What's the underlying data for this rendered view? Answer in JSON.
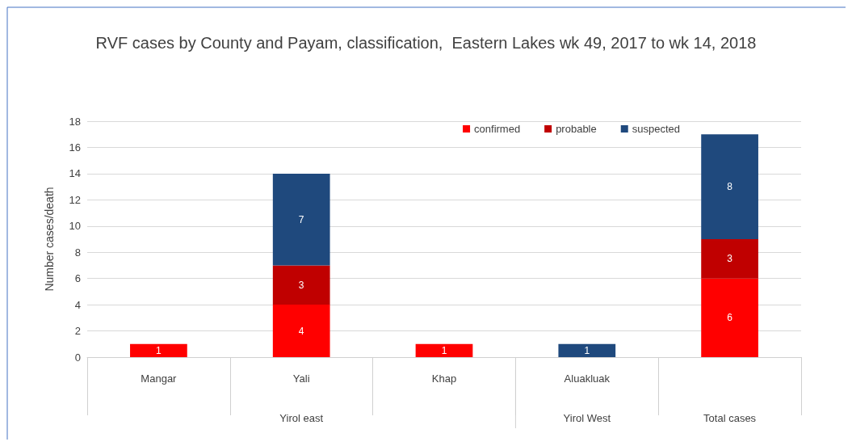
{
  "chart_data": {
    "type": "bar",
    "title": "RVF cases by County and Payam, classification,  Eastern Lakes wk 49, 2017 to wk 14, 2018",
    "ylabel": "Number cases/death",
    "categories": [
      "Mangar",
      "Yali",
      "Khap",
      "Aluakluak",
      null
    ],
    "stacked": true,
    "series": [
      {
        "name": "confirmed",
        "color": "#ff0000",
        "values": [
          1,
          4,
          1,
          null,
          6
        ]
      },
      {
        "name": "probable",
        "color": "#c00000",
        "values": [
          null,
          3,
          null,
          null,
          3
        ]
      },
      {
        "name": "suspected",
        "color": "#1f497d",
        "values": [
          null,
          7,
          null,
          1,
          8
        ]
      }
    ],
    "ylim": [
      0,
      18
    ],
    "yticks": [
      0,
      2,
      4,
      6,
      8,
      10,
      12,
      14,
      16,
      18
    ],
    "grid": "y",
    "legend": "top right",
    "data_labels": true,
    "annotations": [
      "Yirol east",
      "Yirol West",
      "Total cases"
    ]
  }
}
